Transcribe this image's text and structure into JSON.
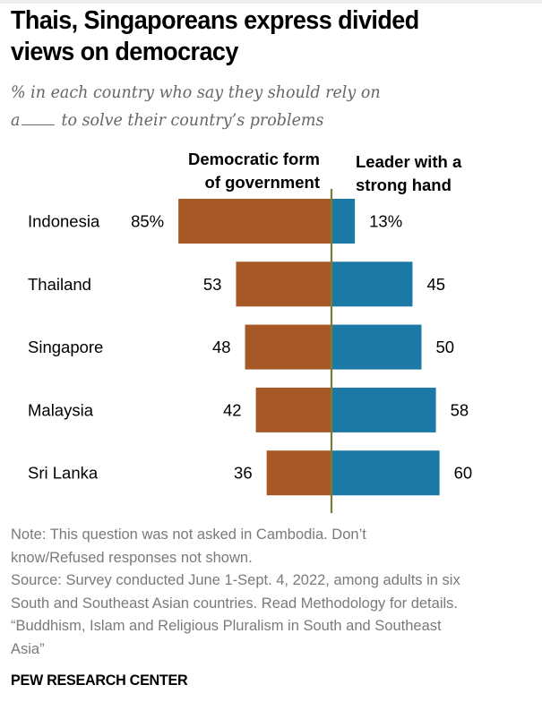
{
  "title": "Thais, Singaporeans express divided views on democracy",
  "title_lines": [
    "Thais, Singaporeans express divided",
    "views on democracy"
  ],
  "subtitle": {
    "line1": "% in each country who say they should rely on",
    "line2_prefix": "a",
    "line2_suffix": "to solve their country’s problems"
  },
  "chart_data": {
    "type": "bar",
    "orientation": "horizontal-diverging",
    "title": "Thais, Singaporeans express divided views on democracy",
    "subtitle": "% in each country who say they should rely on a ____ to solve their country’s problems",
    "categories": [
      "Indonesia",
      "Thailand",
      "Singapore",
      "Malaysia",
      "Sri Lanka"
    ],
    "series": [
      {
        "name": "Democratic form of government",
        "header_lines": [
          "Democratic form",
          "of government"
        ],
        "values": [
          85,
          53,
          48,
          42,
          36
        ],
        "labels": [
          "85%",
          "53",
          "48",
          "42",
          "36"
        ],
        "color": "#A65926",
        "direction": "left"
      },
      {
        "name": "Leader with a strong hand",
        "header_lines": [
          "Leader with a",
          "strong hand"
        ],
        "values": [
          13,
          45,
          50,
          58,
          60
        ],
        "labels": [
          "13%",
          "45",
          "50",
          "58",
          "60"
        ],
        "color": "#1C79A5",
        "direction": "right"
      }
    ],
    "axis_color": "#7C7A3C",
    "xlabel": "",
    "ylabel": "",
    "xlim": [
      -100,
      100
    ],
    "grid": false,
    "legend": "column-headers-top"
  },
  "footer": {
    "note_lines": [
      "Note: This question was not asked in Cambodia. Don’t",
      "know/Refused responses not shown."
    ],
    "source_lines": [
      "Source: Survey conducted June 1-Sept. 4, 2022, among adults in six",
      "South and Southeast Asian countries. Read Methodology for details.",
      "“Buddhism, Islam and Religious Pluralism in South and Southeast",
      "Asia”"
    ],
    "brand": "PEW RESEARCH CENTER"
  }
}
